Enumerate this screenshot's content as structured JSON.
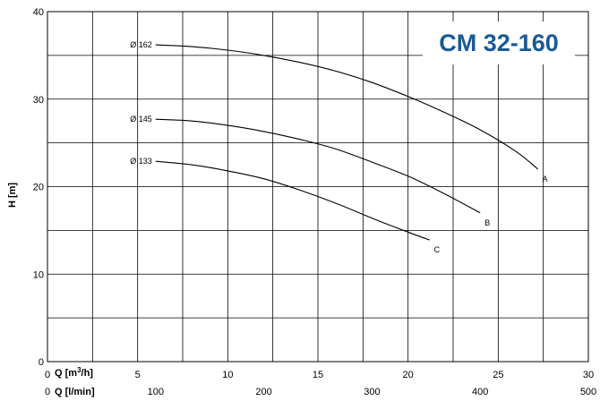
{
  "chart_data": {
    "type": "line",
    "title": "CM 32-160",
    "ylabel": "H [m]",
    "ylim": [
      0,
      40
    ],
    "yticks": [
      0,
      10,
      20,
      30,
      40
    ],
    "xlabel_m3h": "Q [m³/h]",
    "xlim_m3h": [
      0,
      30
    ],
    "xticks_m3h": [
      0,
      5,
      10,
      15,
      20,
      25,
      30
    ],
    "xlabel_lmin": "Q [l/min]",
    "xlim_lmin": [
      0,
      500
    ],
    "xticks_lmin": [
      0,
      100,
      200,
      300,
      400,
      500
    ],
    "grid": true,
    "series": [
      {
        "name": "Ø 162",
        "end_label": "A",
        "x": [
          6,
          8,
          10,
          12,
          14,
          16,
          18,
          20,
          22,
          24,
          26,
          27.2
        ],
        "values": [
          36.2,
          36.0,
          35.6,
          35.0,
          34.2,
          33.2,
          31.9,
          30.3,
          28.5,
          26.5,
          24.0,
          22.0
        ]
      },
      {
        "name": "Ø 145",
        "end_label": "B",
        "x": [
          6,
          8,
          10,
          12,
          14,
          16,
          18,
          20,
          22,
          24
        ],
        "values": [
          27.7,
          27.5,
          27.0,
          26.3,
          25.4,
          24.3,
          22.8,
          21.2,
          19.2,
          17.0
        ]
      },
      {
        "name": "Ø 133",
        "end_label": "C",
        "x": [
          6,
          8,
          10,
          12,
          14,
          16,
          18,
          20,
          21.2
        ],
        "values": [
          22.9,
          22.5,
          21.8,
          20.9,
          19.6,
          18.1,
          16.4,
          14.8,
          13.9
        ]
      }
    ]
  }
}
